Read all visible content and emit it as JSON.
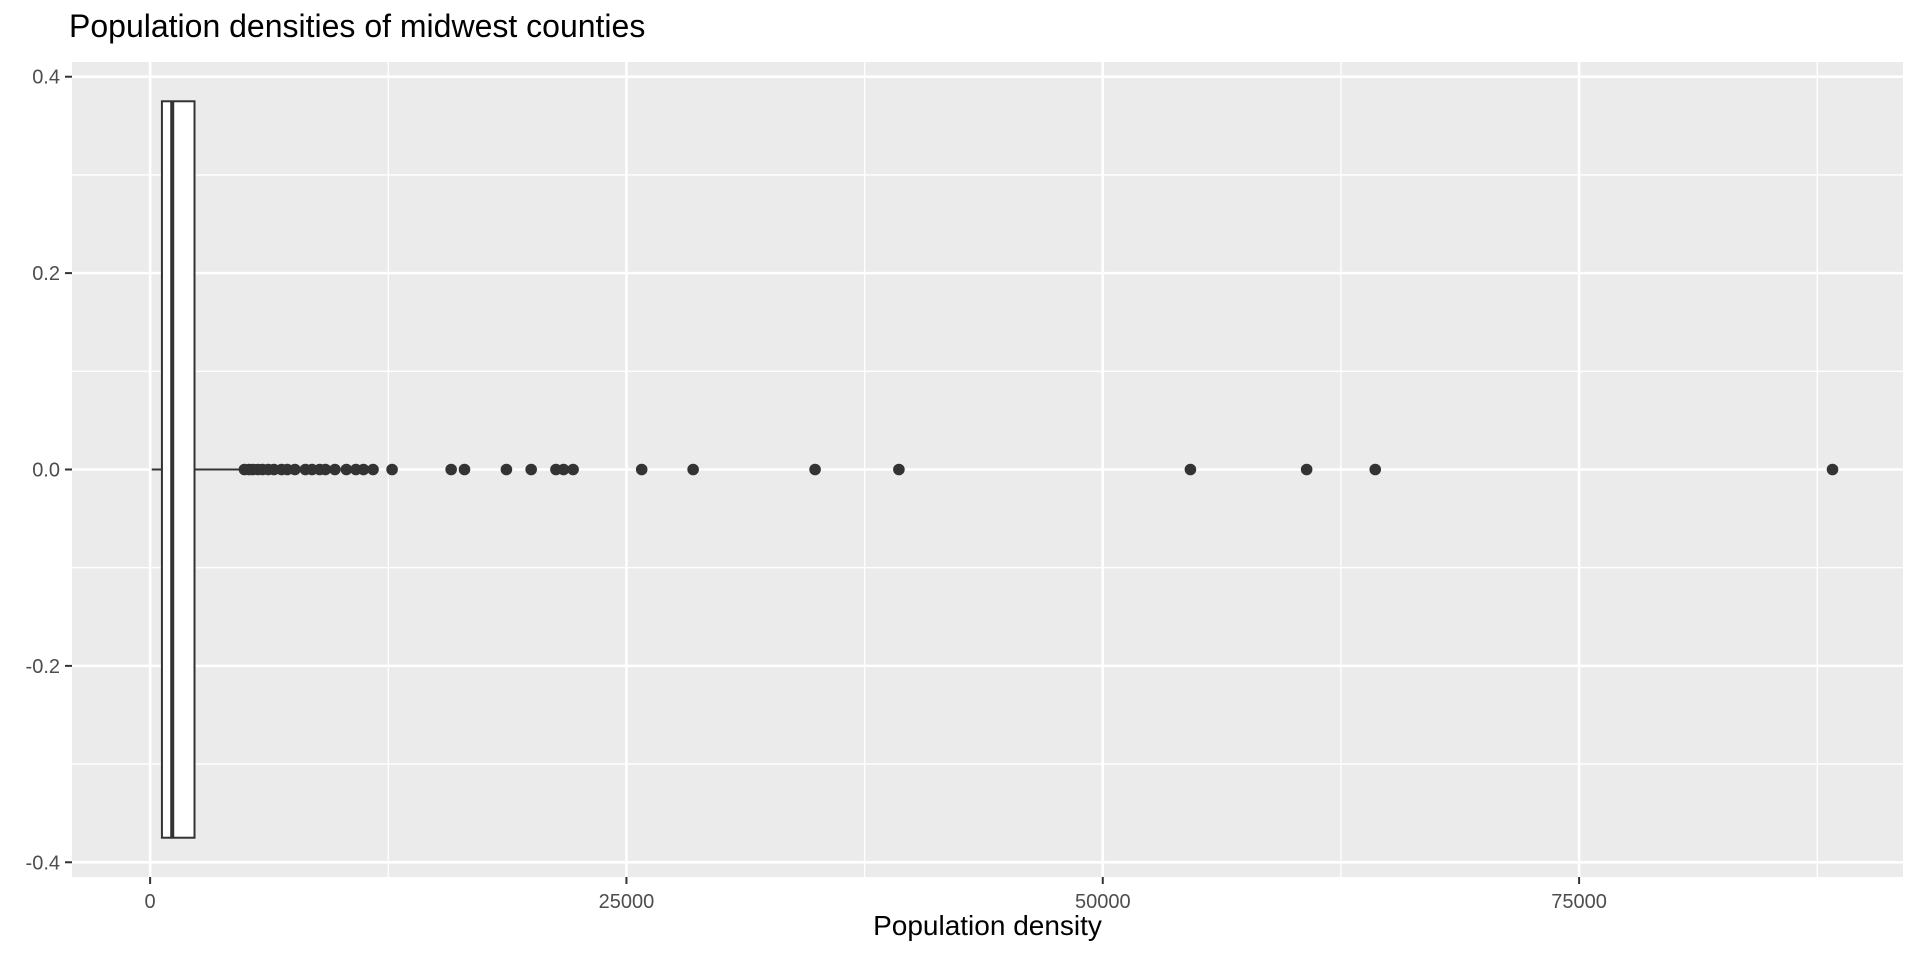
{
  "chart_data": {
    "type": "boxplot",
    "title": "Population densities of midwest counties",
    "xlabel": "Population density",
    "ylabel": "",
    "orientation": "horizontal",
    "xlim": [
      -4100,
      92000
    ],
    "ylim": [
      -0.415,
      0.415
    ],
    "x_ticks": [
      0,
      25000,
      50000,
      75000
    ],
    "x_tick_labels": [
      "0",
      "25000",
      "50000",
      "75000"
    ],
    "y_ticks": [
      -0.4,
      -0.2,
      0.0,
      0.2,
      0.4
    ],
    "y_tick_labels": [
      "-0.4",
      "-0.2",
      "0.0",
      "0.2",
      "0.4"
    ],
    "grid": true,
    "legend": "none",
    "box": {
      "y_center": 0.0,
      "y_min": -0.375,
      "y_max": 0.375,
      "lower_whisker": 85,
      "q1": 620,
      "median": 1160,
      "q3": 2330,
      "upper_whisker": 4850
    },
    "outliers": {
      "y": 0.0,
      "x": [
        4950,
        5200,
        5400,
        5650,
        5900,
        6200,
        6500,
        6900,
        7200,
        7600,
        8150,
        8500,
        8900,
        9200,
        9700,
        10300,
        10800,
        11200,
        11700,
        12700,
        15800,
        16500,
        18700,
        20000,
        21300,
        21700,
        22200,
        25800,
        28500,
        34900,
        39300,
        54600,
        60700,
        64300,
        88300
      ]
    },
    "colors": {
      "panel_background": "#ebebeb",
      "gridline": "#ffffff",
      "box_fill": "#ffffff",
      "box_stroke": "#333333",
      "point": "#333333",
      "tick_label": "#4d4d4d",
      "tick_mark": "#333333"
    }
  }
}
